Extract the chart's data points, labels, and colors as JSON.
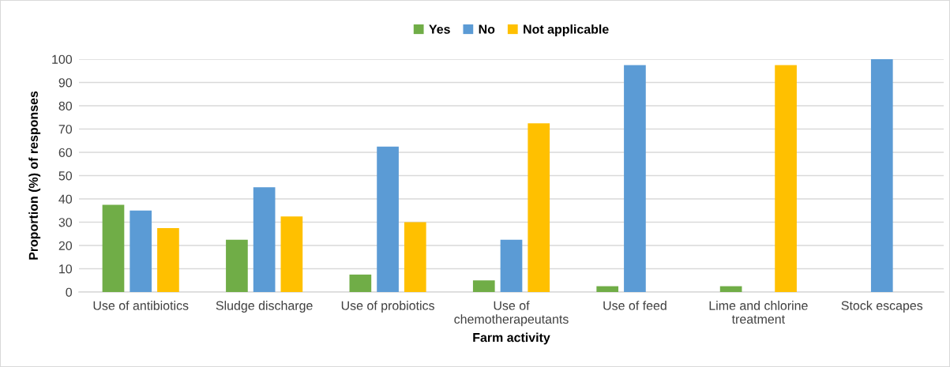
{
  "chart_data": {
    "type": "bar",
    "xlabel": "Farm activity",
    "ylabel": "Proportion (%) of responses",
    "categories": [
      "Use of antibiotics",
      "Sludge discharge",
      "Use of probiotics",
      "Use of\nchemotherapeutants",
      "Use of feed",
      "Lime and chlorine\ntreatment",
      "Stock escapes"
    ],
    "series": [
      {
        "name": "Yes",
        "color": "#70ad47",
        "values": [
          37.5,
          22.5,
          7.5,
          5,
          2.5,
          2.5,
          0
        ]
      },
      {
        "name": "No",
        "color": "#5b9bd5",
        "values": [
          35,
          45,
          62.5,
          22.5,
          97.5,
          0,
          100
        ]
      },
      {
        "name": "Not applicable",
        "color": "#ffc000",
        "values": [
          27.5,
          32.5,
          30,
          72.5,
          0,
          97.5,
          0
        ]
      }
    ],
    "ylim": [
      0,
      100
    ],
    "yticks": [
      0,
      10,
      20,
      30,
      40,
      50,
      60,
      70,
      80,
      90,
      100
    ],
    "grid": "y",
    "legend": "top"
  }
}
